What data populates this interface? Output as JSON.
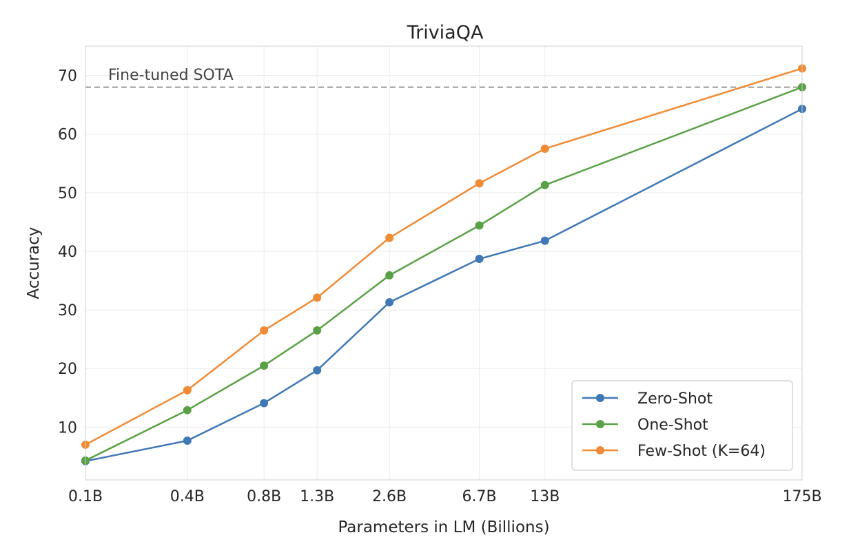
{
  "chart_data": {
    "type": "line",
    "title": "TriviaQA",
    "xlabel": "Parameters in LM (Billions)",
    "ylabel": "Accuracy",
    "x_scale": "log",
    "categories": [
      "0.1B",
      "0.4B",
      "0.8B",
      "1.3B",
      "2.6B",
      "6.7B",
      "13B",
      "175B"
    ],
    "x": [
      0.125,
      0.35,
      0.76,
      1.3,
      2.7,
      6.7,
      13,
      175
    ],
    "ylim": [
      1,
      75
    ],
    "yticks": [
      10,
      20,
      30,
      40,
      50,
      60,
      70
    ],
    "grid": true,
    "legend_position": "lower-right",
    "series": [
      {
        "name": "Zero-Shot",
        "color": "#3f78b4",
        "values": [
          4.2,
          7.7,
          14.1,
          19.7,
          31.3,
          38.7,
          41.8,
          64.3
        ]
      },
      {
        "name": "One-Shot",
        "color": "#58a145",
        "values": [
          4.3,
          12.9,
          20.5,
          26.5,
          35.9,
          44.4,
          51.3,
          68.0
        ]
      },
      {
        "name": "Few-Shot (K=64)",
        "color": "#f08a35",
        "values": [
          7.0,
          16.3,
          26.5,
          32.1,
          42.3,
          51.6,
          57.5,
          71.2
        ]
      }
    ],
    "reference_line": {
      "label": "Fine-tuned SOTA",
      "value": 68.0,
      "color": "#999999"
    }
  }
}
